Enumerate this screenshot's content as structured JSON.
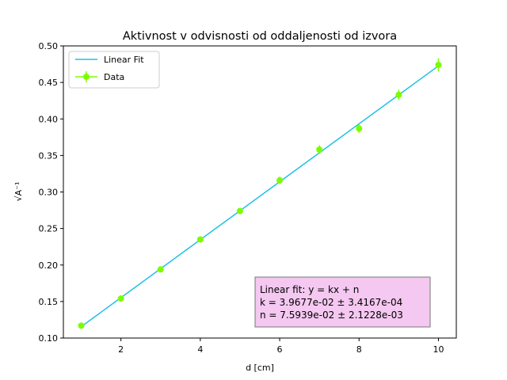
{
  "chart_data": {
    "type": "scatter",
    "title": "Aktivnost v odvisnosti od oddaljenosti od izvora",
    "xlabel": "d [cm]",
    "ylabel": "√A⁻¹",
    "xlim": [
      0.55,
      10.45
    ],
    "ylim": [
      0.1,
      0.5
    ],
    "xticks": [
      2,
      4,
      6,
      8,
      10
    ],
    "yticks": [
      0.1,
      0.15,
      0.2,
      0.25,
      0.3,
      0.35,
      0.4,
      0.45,
      0.5
    ],
    "ytick_labels": [
      "0.10",
      "0.15",
      "0.20",
      "0.25",
      "0.30",
      "0.35",
      "0.40",
      "0.45",
      "0.50"
    ],
    "grid": false,
    "legend_position": "top-left",
    "series": [
      {
        "name": "Data",
        "kind": "errorbar",
        "color": "#7cfc00",
        "x": [
          1,
          2,
          3,
          4,
          5,
          6,
          7,
          8,
          9,
          10
        ],
        "y": [
          0.117,
          0.154,
          0.194,
          0.235,
          0.274,
          0.316,
          0.358,
          0.387,
          0.433,
          0.474
        ],
        "yerr": [
          0.002,
          0.003,
          0.003,
          0.004,
          0.004,
          0.005,
          0.006,
          0.006,
          0.007,
          0.009
        ]
      },
      {
        "name": "Linear Fit",
        "kind": "line",
        "color": "#1fc1e6",
        "x": [
          1,
          10
        ],
        "y": [
          0.1156,
          0.4727
        ]
      }
    ],
    "annotation": {
      "lines": [
        "Linear fit: y = kx + n",
        "k = 3.9677e-02 ± 3.4167e-04",
        "n = 7.5939e-02 ± 2.1228e-03"
      ],
      "background": "#f4c8f0"
    }
  }
}
